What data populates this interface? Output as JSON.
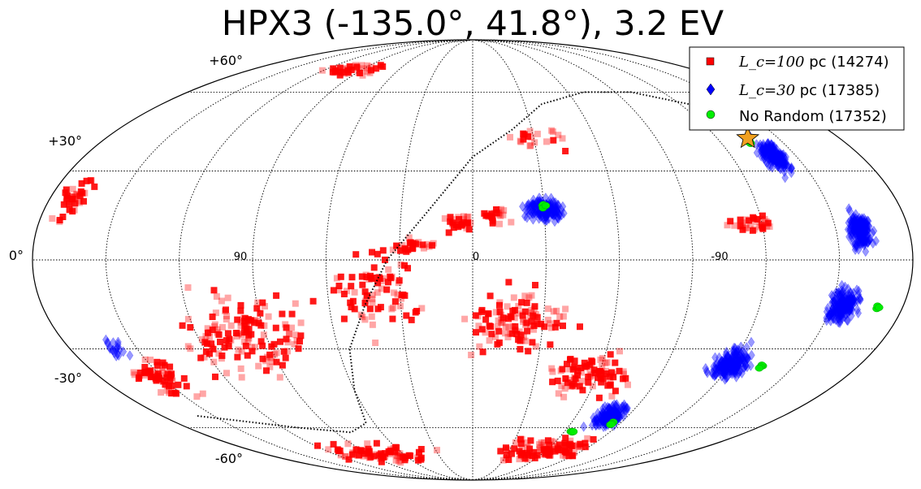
{
  "chart_data": {
    "type": "scatter",
    "projection": "mollweide",
    "title": "HPX3 (-135.0°, 41.8°), 3.2 EV",
    "latitude_tick_labels": [
      "+60°",
      "+30°",
      "0°",
      "-30°",
      "-60°"
    ],
    "longitude_tick_labels": [
      "90",
      "0",
      "-90"
    ],
    "grid": true,
    "legend_placement": "top-right",
    "source_marker": {
      "shape": "star",
      "color": "#f0a020",
      "lon": -135.0,
      "lat": 41.8
    },
    "galactic_plane_curve": "dotted",
    "series": [
      {
        "legend_label_math": "L_c=100",
        "legend_label_suffix": " pc (14274)",
        "marker": "square",
        "color": "#ff0000",
        "count": 14274,
        "clusters": [
          {
            "lon": 170,
            "lat": 20,
            "spread_lon": 8,
            "spread_lat": 10,
            "n": 40
          },
          {
            "lon": 100,
            "lat": 70,
            "spread_lon": 30,
            "spread_lat": 4,
            "n": 40
          },
          {
            "lon": 5,
            "lat": 12,
            "spread_lon": 10,
            "spread_lat": 4,
            "n": 25
          },
          {
            "lon": 25,
            "lat": 5,
            "spread_lon": 10,
            "spread_lat": 3,
            "n": 25
          },
          {
            "lon": -10,
            "lat": 15,
            "spread_lon": 10,
            "spread_lat": 4,
            "n": 25
          },
          {
            "lon": -30,
            "lat": 42,
            "spread_lon": 25,
            "spread_lat": 6,
            "n": 20
          },
          {
            "lon": -115,
            "lat": 12,
            "spread_lon": 15,
            "spread_lat": 4,
            "n": 30
          },
          {
            "lon": -20,
            "lat": -20,
            "spread_lon": 30,
            "spread_lat": 15,
            "n": 110
          },
          {
            "lon": -60,
            "lat": -40,
            "spread_lon": 30,
            "spread_lat": 12,
            "n": 90
          },
          {
            "lon": -60,
            "lat": -70,
            "spread_lon": 50,
            "spread_lat": 8,
            "n": 100
          },
          {
            "lon": 80,
            "lat": -72,
            "spread_lon": 60,
            "spread_lat": 6,
            "n": 80
          },
          {
            "lon": 100,
            "lat": -25,
            "spread_lon": 40,
            "spread_lat": 18,
            "n": 150
          },
          {
            "lon": 40,
            "lat": -10,
            "spread_lon": 25,
            "spread_lat": 20,
            "n": 80
          },
          {
            "lon": 150,
            "lat": -40,
            "spread_lon": 15,
            "spread_lat": 10,
            "n": 60
          }
        ]
      },
      {
        "legend_label_math": "L_c=30",
        "legend_label_suffix": " pc (17385)",
        "marker": "diamond",
        "color": "#0000ff",
        "count": 17385,
        "clusters": [
          {
            "lon": -30,
            "lat": 17,
            "spread_lon": 10,
            "spread_lat": 5,
            "n": 180
          },
          {
            "lon": -140,
            "lat": 35,
            "spread_lon": 8,
            "spread_lat": 8,
            "n": 180
          },
          {
            "lon": -160,
            "lat": 10,
            "spread_lon": 7,
            "spread_lat": 8,
            "n": 180
          },
          {
            "lon": -155,
            "lat": -15,
            "spread_lon": 8,
            "spread_lat": 8,
            "n": 200
          },
          {
            "lon": -120,
            "lat": -35,
            "spread_lon": 12,
            "spread_lat": 8,
            "n": 200
          },
          {
            "lon": -80,
            "lat": -55,
            "spread_lon": 12,
            "spread_lat": 6,
            "n": 160
          },
          {
            "lon": 160,
            "lat": -30,
            "spread_lon": 6,
            "spread_lat": 5,
            "n": 20
          }
        ]
      },
      {
        "legend_label_text": "No Random (17352)",
        "marker": "circle",
        "color": "#00ee00",
        "count": 17352,
        "points": [
          {
            "lon": -30,
            "lat": 18
          },
          {
            "lon": -134,
            "lat": 40
          },
          {
            "lon": -170,
            "lat": -16
          },
          {
            "lon": -135,
            "lat": -36
          },
          {
            "lon": -85,
            "lat": -58
          },
          {
            "lon": -65,
            "lat": -62
          }
        ]
      }
    ]
  }
}
